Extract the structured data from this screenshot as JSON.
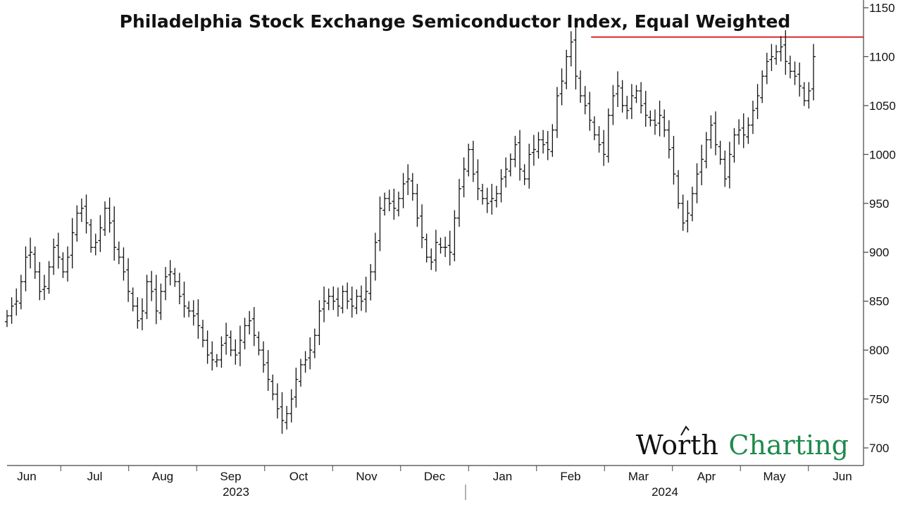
{
  "brand": {
    "name_part1": "Worth",
    "name_part2": "Charting",
    "part2_color": "#1f8a4c"
  },
  "chart_data": {
    "type": "ohlc",
    "title": "Philadelphia Stock Exchange Semiconductor Index, Equal Weighted",
    "xlabel": "",
    "ylabel": "",
    "ylim": [
      690,
      1160
    ],
    "yticks": [
      700,
      750,
      800,
      850,
      900,
      950,
      1000,
      1050,
      1100,
      1150
    ],
    "y_axis_side": "right",
    "grid": false,
    "legend": "none",
    "bar_color": "#111111",
    "x_month_labels": [
      "Jun",
      "Jul",
      "Aug",
      "Sep",
      "Oct",
      "Nov",
      "Dec",
      "Jan",
      "Feb",
      "Mar",
      "Apr",
      "May",
      "Jun"
    ],
    "x_year_labels": [
      "2023",
      "2024"
    ],
    "resistance_line": {
      "value": 1120,
      "color": "#d62728",
      "from_month_index": 8.5
    },
    "close_series": [
      835,
      845,
      850,
      870,
      895,
      900,
      880,
      860,
      865,
      885,
      905,
      895,
      880,
      895,
      920,
      940,
      945,
      930,
      905,
      910,
      925,
      945,
      930,
      905,
      895,
      880,
      860,
      845,
      830,
      840,
      870,
      860,
      840,
      860,
      875,
      880,
      870,
      855,
      845,
      840,
      835,
      825,
      810,
      795,
      790,
      790,
      805,
      815,
      800,
      795,
      810,
      825,
      830,
      815,
      800,
      785,
      770,
      755,
      740,
      728,
      735,
      750,
      770,
      785,
      790,
      800,
      815,
      840,
      850,
      855,
      850,
      845,
      860,
      850,
      845,
      855,
      850,
      860,
      880,
      910,
      945,
      955,
      950,
      945,
      955,
      970,
      975,
      960,
      935,
      915,
      895,
      890,
      910,
      905,
      905,
      900,
      935,
      965,
      985,
      1005,
      980,
      965,
      955,
      950,
      955,
      960,
      975,
      985,
      995,
      1010,
      985,
      975,
      1000,
      1005,
      1015,
      1010,
      1005,
      1025,
      1060,
      1075,
      1100,
      1115,
      1080,
      1060,
      1050,
      1035,
      1020,
      1010,
      1000,
      1040,
      1060,
      1070,
      1050,
      1045,
      1060,
      1065,
      1050,
      1040,
      1035,
      1030,
      1040,
      1025,
      1005,
      980,
      950,
      930,
      940,
      960,
      980,
      995,
      1015,
      1030,
      1010,
      995,
      975,
      1000,
      1020,
      1025,
      1020,
      1030,
      1045,
      1060,
      1080,
      1095,
      1100,
      1105,
      1110,
      1095,
      1085,
      1080,
      1070,
      1055,
      1065,
      1100
    ]
  }
}
